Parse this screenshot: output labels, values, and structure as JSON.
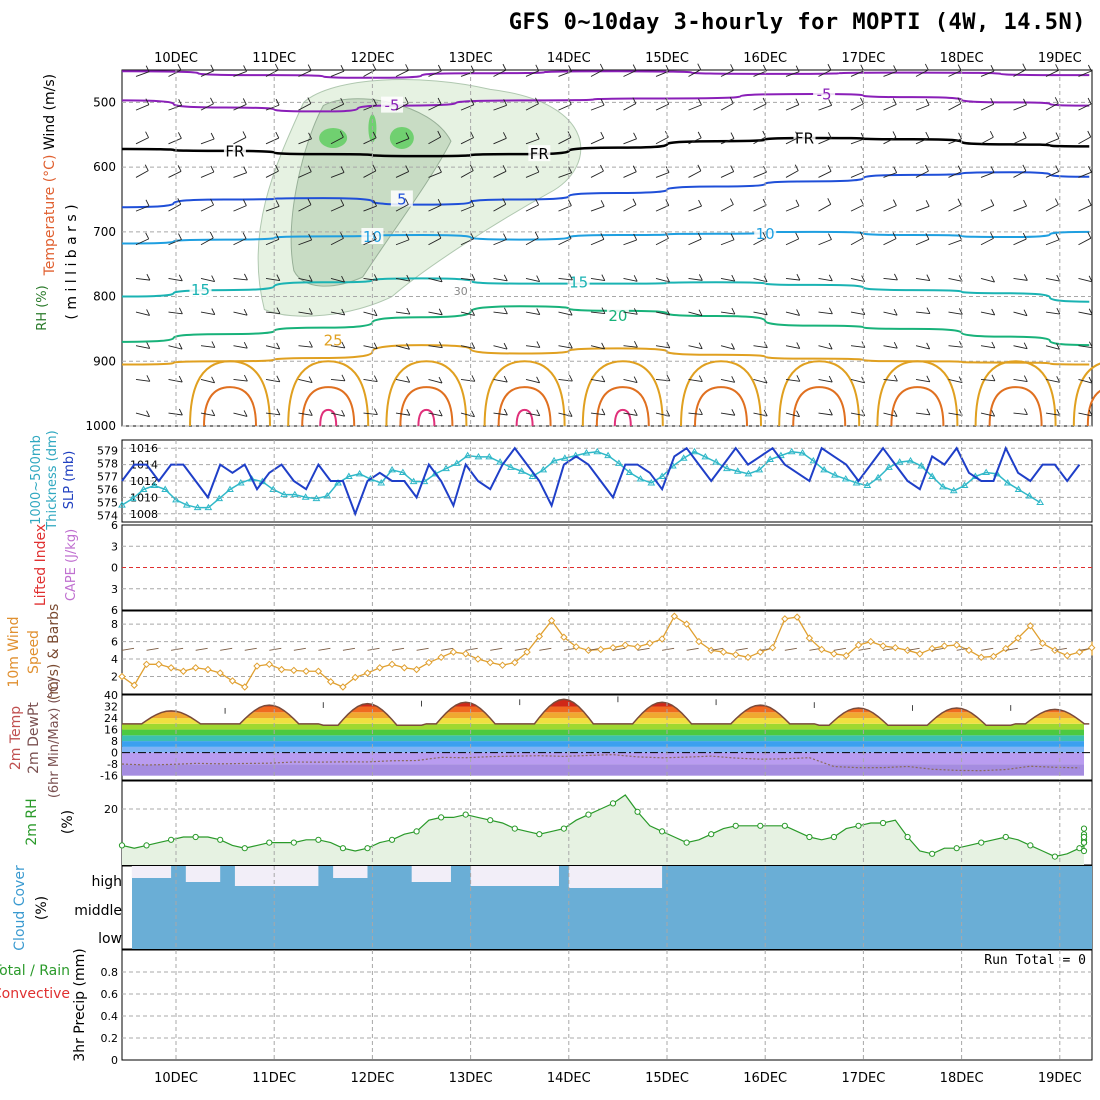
{
  "title": "GFS 0~10day 3-hourly for MOPTI (4W, 14.5N)",
  "run_total": "Run Total = 0",
  "date_labels": [
    "10DEC",
    "11DEC",
    "12DEC",
    "13DEC",
    "14DEC",
    "15DEC",
    "16DEC",
    "17DEC",
    "18DEC",
    "19DEC"
  ],
  "panel_labels": {
    "upper": [
      "Wind (m/s)",
      "Temperature (°C)",
      "RH (%)",
      "( m i l l i b a r s )"
    ],
    "thickness": [
      "1000~500mb",
      "Thickness (dm)",
      "SLP (mb)"
    ],
    "stability": [
      "Lifted Index",
      "CAPE (J/kg)"
    ],
    "wind10": [
      "10m Wind",
      "Speed",
      "(m/s) & Barbs"
    ],
    "temp2m": [
      "2m Temp",
      "2m DewPt",
      "(6hr Min/Max) (°C)"
    ],
    "rh2m": [
      "2m RH",
      "(%)"
    ],
    "cloud": [
      "Cloud Cover",
      "(%)"
    ],
    "precip": [
      "Total / Rain",
      "Convective",
      "3hr Precip (mm)"
    ]
  },
  "cloud_levels": [
    "high",
    "middle",
    "low"
  ],
  "colors": {
    "temp_minus5": "#8a1fb8",
    "temp_freezing": "#000000",
    "temp_5": "#1f4fd8",
    "temp_10": "#1f9fe0",
    "temp_15": "#1ab3b3",
    "temp_20": "#18b27a",
    "temp_25": "#e0a020",
    "temp_30": "#e07020",
    "temp_35": "#e0307a",
    "slp": "#1f3fc8",
    "thickness": "#30b8c8",
    "wind_speed": "#e0a030",
    "rh": "#2a9a2a",
    "cloud": "#6aaed6",
    "cloud_clear": "#f2eef8",
    "grid": "#a8a8a8",
    "li_zero": "#e03030"
  },
  "chart_data": [
    {
      "type": "line",
      "name": "upper_air_cross_section",
      "ylabel": "millibars",
      "ylim": [
        1000,
        450
      ],
      "yticks": [
        500,
        600,
        700,
        800,
        900,
        1000
      ],
      "x_unit": "days from 10DEC 00Z",
      "xlim": [
        -0.55,
        9.3
      ],
      "isotherm_labels": [
        "-5",
        "FR",
        "FR",
        "FR",
        "5",
        "10",
        "10",
        "15",
        "15",
        "20",
        "25",
        "30"
      ],
      "isotherms": [
        {
          "label": "-5",
          "points": [
            [
              -0.55,
              497
            ],
            [
              0.5,
              508
            ],
            [
              1.5,
              514
            ],
            [
              2.2,
              505
            ],
            [
              3.5,
              497
            ],
            [
              5.0,
              494
            ],
            [
              6.5,
              487
            ],
            [
              7.5,
              492
            ],
            [
              8.5,
              500
            ],
            [
              9.3,
              505
            ]
          ]
        },
        {
          "label": "-5",
          "points": [
            [
              -0.55,
              452
            ],
            [
              1.0,
              458
            ],
            [
              2.0,
              462
            ],
            [
              3.0,
              455
            ],
            [
              4.5,
              452
            ],
            [
              6.0,
              456
            ],
            [
              7.5,
              454
            ],
            [
              9.3,
              458
            ]
          ]
        },
        {
          "label": "FR",
          "points": [
            [
              -0.55,
              572
            ],
            [
              0.5,
              575
            ],
            [
              1.5,
              580
            ],
            [
              2.5,
              583
            ],
            [
              3.5,
              580
            ],
            [
              4.5,
              570
            ],
            [
              5.5,
              560
            ],
            [
              6.5,
              555
            ],
            [
              7.5,
              557
            ],
            [
              8.5,
              565
            ],
            [
              9.3,
              568
            ]
          ]
        },
        {
          "label": "5",
          "points": [
            [
              -0.55,
              662
            ],
            [
              0.5,
              650
            ],
            [
              1.5,
              648
            ],
            [
              2.5,
              658
            ],
            [
              3.5,
              650
            ],
            [
              4.5,
              640
            ],
            [
              5.5,
              630
            ],
            [
              6.5,
              622
            ],
            [
              7.5,
              612
            ],
            [
              8.5,
              608
            ],
            [
              9.3,
              615
            ]
          ]
        },
        {
          "label": "10",
          "points": [
            [
              -0.55,
              718
            ],
            [
              0.5,
              712
            ],
            [
              1.5,
              707
            ],
            [
              2.5,
              705
            ],
            [
              3.5,
              712
            ],
            [
              4.5,
              705
            ],
            [
              5.5,
              703
            ],
            [
              6.5,
              700
            ],
            [
              7.5,
              705
            ],
            [
              8.5,
              708
            ],
            [
              9.3,
              700
            ]
          ]
        },
        {
          "label": "15",
          "points": [
            [
              -0.55,
              800
            ],
            [
              0.5,
              790
            ],
            [
              1.5,
              778
            ],
            [
              2.5,
              772
            ],
            [
              3.5,
              780
            ],
            [
              4.5,
              780
            ],
            [
              5.5,
              778
            ],
            [
              6.5,
              782
            ],
            [
              7.5,
              790
            ],
            [
              8.5,
              795
            ],
            [
              9.3,
              808
            ]
          ]
        },
        {
          "label": "20",
          "points": [
            [
              -0.55,
              870
            ],
            [
              0.5,
              858
            ],
            [
              1.5,
              848
            ],
            [
              2.5,
              832
            ],
            [
              3.5,
              815
            ],
            [
              4.5,
              822
            ],
            [
              5.5,
              830
            ],
            [
              6.5,
              845
            ],
            [
              7.5,
              850
            ],
            [
              8.5,
              862
            ],
            [
              9.3,
              875
            ]
          ]
        },
        {
          "label": "25",
          "points": [
            [
              -0.55,
              905
            ],
            [
              0.5,
              900
            ],
            [
              1.5,
              895
            ],
            [
              2.5,
              875
            ],
            [
              3.5,
              888
            ],
            [
              4.5,
              880
            ],
            [
              5.5,
              890
            ],
            [
              6.5,
              896
            ],
            [
              7.5,
              900
            ],
            [
              8.5,
              902
            ],
            [
              9.3,
              905
            ]
          ]
        }
      ],
      "rh_30_region": true
    },
    {
      "type": "line",
      "name": "slp_and_thickness",
      "x_unit": "days from 10DEC 00Z",
      "xlim": [
        -0.55,
        9.3
      ],
      "series": [
        {
          "name": "SLP (mb)",
          "axis": "right_inner",
          "ylim": [
            1007,
            1017
          ],
          "values": [
            1012,
            1014,
            1014,
            1012,
            1014,
            1014,
            1012,
            1010,
            1014,
            1013,
            1014,
            1011,
            1013,
            1014,
            1012,
            1011,
            1014,
            1012,
            1012,
            1008,
            1012,
            1013,
            1012,
            1012,
            1010,
            1014,
            1012,
            1009,
            1014,
            1012,
            1011,
            1014,
            1016,
            1014,
            1012,
            1009,
            1014,
            1015,
            1014,
            1012,
            1010,
            1014,
            1014,
            1013,
            1011,
            1015,
            1016,
            1014,
            1012,
            1014,
            1016,
            1014,
            1015,
            1016,
            1014,
            1013,
            1012,
            1016,
            1015,
            1014,
            1012,
            1014,
            1016,
            1014,
            1012,
            1011,
            1015,
            1014,
            1016,
            1013,
            1012,
            1012,
            1016,
            1013,
            1012,
            1014,
            1014,
            1012,
            1014
          ],
          "x_start": -0.55,
          "x_step": 0.125
        },
        {
          "name": "Thickness (dm)",
          "axis": "left",
          "ylim": [
            573.5,
            579.8
          ],
          "values": [
            574.8,
            575.3,
            576.0,
            576.3,
            576.0,
            575.2,
            574.8,
            574.6,
            574.6,
            575.3,
            576.0,
            576.5,
            576.8,
            576.6,
            576.0,
            575.6,
            575.6,
            575.4,
            575.3,
            575.5,
            576.5,
            577.0,
            577.2,
            576.8,
            576.5,
            577.5,
            577.3,
            576.6,
            576.6,
            577.2,
            577.6,
            578.0,
            578.6,
            578.5,
            578.5,
            578.1,
            577.7,
            577.4,
            577.0,
            577.5,
            578.2,
            578.4,
            578.6,
            578.8,
            578.9,
            578.6,
            578.0,
            577.3,
            576.8,
            576.5,
            577.0,
            577.8,
            578.4,
            578.9,
            578.5,
            578.1,
            577.6,
            577.4,
            577.2,
            577.5,
            578.3,
            578.6,
            578.9,
            578.8,
            578.2,
            577.5,
            577.1,
            576.8,
            576.5,
            576.3,
            576.9,
            577.7,
            578.1,
            578.2,
            577.8,
            577.0,
            576.2,
            575.9,
            576.3,
            577.0,
            577.3,
            577.2,
            576.5,
            576.0,
            575.5,
            575.0
          ],
          "x_start": -0.55,
          "x_step": 0.11
        },
        {
          "name": "Thickness label ticks",
          "ticks": [
            574,
            575,
            576,
            577,
            578,
            579
          ]
        },
        {
          "name": "SLP label ticks",
          "ticks": [
            1008,
            1010,
            1012,
            1014,
            1016
          ]
        }
      ]
    },
    {
      "type": "line",
      "name": "lifted_index_cape",
      "ylabel": "Lifted Index / CAPE (J/kg)",
      "yticks": [
        "6",
        "3",
        "0",
        "3",
        "6"
      ],
      "ylim": [
        6,
        -6
      ],
      "series": []
    },
    {
      "type": "line",
      "name": "wind10m_speed",
      "ylabel": "(m/s)",
      "ylim": [
        0,
        9.5
      ],
      "yticks": [
        2,
        4,
        6,
        8
      ],
      "x_start": -0.55,
      "x_step": 0.125,
      "values": [
        2.0,
        1.0,
        3.4,
        3.4,
        3.0,
        2.6,
        3.0,
        2.8,
        2.4,
        1.5,
        0.8,
        3.2,
        3.4,
        2.8,
        2.7,
        2.6,
        2.6,
        1.4,
        0.8,
        1.9,
        2.4,
        3.0,
        3.4,
        3.0,
        2.8,
        3.6,
        4.2,
        4.8,
        4.6,
        4.0,
        3.6,
        3.3,
        3.6,
        4.8,
        6.6,
        8.4,
        6.5,
        5.4,
        5.0,
        5.1,
        5.3,
        5.6,
        5.4,
        5.8,
        6.3,
        8.9,
        8.0,
        6.0,
        5.0,
        4.8,
        4.5,
        4.2,
        4.8,
        5.3,
        8.6,
        8.8,
        6.4,
        5.1,
        4.6,
        4.4,
        5.6,
        6.0,
        5.5,
        5.3,
        5.0,
        4.6,
        5.2,
        5.5,
        5.6,
        5.0,
        4.2,
        4.3,
        5.2,
        6.4,
        7.8,
        5.8,
        5.0,
        4.4,
        4.8,
        5.3,
        5.0,
        5.6,
        6.0,
        5.4,
        4.8,
        4.6,
        5.0,
        5.4,
        4.4,
        5.6,
        4.8,
        5.6,
        5.4,
        4.6,
        6.0
      ],
      "barbs": true
    },
    {
      "type": "area",
      "name": "temp2m_dewpt",
      "ylabel": "(°C)",
      "ylim": [
        -19,
        40
      ],
      "yticks": [
        -16,
        -8,
        0,
        8,
        16,
        24,
        32,
        40
      ],
      "temperature_daily_max": [
        29,
        33,
        34,
        35,
        37,
        35,
        33,
        31,
        31,
        30
      ],
      "temperature_daily_min": [
        20,
        20,
        19,
        20,
        20,
        20,
        20,
        19,
        19,
        20
      ],
      "dewpoint_approx": [
        -8,
        -7,
        -6,
        -3,
        -2,
        -3,
        -4,
        -10,
        -12,
        -10
      ],
      "band_colors": [
        "#a58ce0",
        "#b99cf0",
        "#7fb3f5",
        "#3ba0f0",
        "#3cc0b0",
        "#4cc940",
        "#9fd830",
        "#f0e040",
        "#f0a830",
        "#f06a20",
        "#d02818"
      ],
      "band_edges": [
        -16,
        -8,
        0,
        4,
        8,
        12,
        16,
        20,
        24,
        28,
        32,
        40
      ]
    },
    {
      "type": "area",
      "name": "rh2m",
      "ylabel": "(%)",
      "ylim": [
        0,
        30
      ],
      "yticks": [
        20
      ],
      "x_start": -0.55,
      "x_step": 0.125,
      "values": [
        7,
        6,
        7,
        8,
        9,
        10,
        10,
        10,
        9,
        7,
        6,
        7,
        8,
        8,
        8,
        9,
        9,
        8,
        6,
        5,
        6,
        8,
        9,
        11,
        12,
        16,
        17,
        17,
        18,
        17,
        16,
        15,
        13,
        12,
        11,
        12,
        13,
        16,
        18,
        20,
        22,
        25,
        19,
        14,
        12,
        10,
        8,
        9,
        11,
        13,
        14,
        14,
        14,
        14,
        14,
        12,
        10,
        9,
        10,
        13,
        14,
        15,
        15,
        16,
        10,
        5,
        4,
        6,
        6,
        7,
        8,
        9,
        10,
        9,
        7,
        5,
        3,
        4,
        6,
        7,
        8,
        8,
        8,
        7,
        9,
        10,
        11,
        11,
        10,
        9,
        8,
        7,
        5,
        6,
        8,
        9,
        10,
        12,
        13
      ]
    },
    {
      "type": "bar",
      "name": "cloud_cover",
      "categories": [
        "high",
        "middle",
        "low"
      ],
      "values": [
        85,
        100,
        100
      ]
    },
    {
      "type": "bar",
      "name": "precip_3hr",
      "ylabel": "3hr Precip (mm)",
      "ylim": [
        0,
        1
      ],
      "yticks": [
        "0",
        "0.2",
        "0.4",
        "0.6",
        "0.8"
      ],
      "values": []
    }
  ]
}
